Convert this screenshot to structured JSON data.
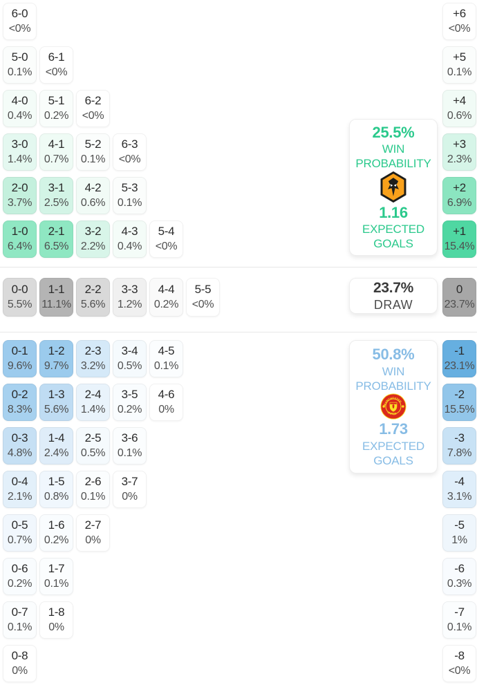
{
  "home_panel": {
    "win_probability": "25.5%",
    "win_label": "WIN PROBABILITY",
    "expected_goals": "1.16",
    "goals_label": "EXPECTED GOALS",
    "accent": "#2bc98c",
    "icon": "wolves-crest"
  },
  "draw_panel": {
    "probability": "23.7%",
    "label": "DRAW"
  },
  "away_panel": {
    "win_probability": "50.8%",
    "win_label": "WIN PROBABILITY",
    "expected_goals": "1.73",
    "goals_label": "EXPECTED GOALS",
    "accent": "#87bce5",
    "icon": "manchester-united-crest"
  },
  "chart_data": {
    "type": "heatmap",
    "description": "Correct score probability matrix with goal-difference totals",
    "legend_position": "none",
    "home_rows": [
      [
        {
          "label": "6-0",
          "pct": "<0%",
          "bg": "#ffffff"
        }
      ],
      [
        {
          "label": "5-0",
          "pct": "0.1%",
          "bg": "#fbfdfc"
        },
        {
          "label": "6-1",
          "pct": "<0%",
          "bg": "#ffffff"
        }
      ],
      [
        {
          "label": "4-0",
          "pct": "0.4%",
          "bg": "#f4fcf8"
        },
        {
          "label": "5-1",
          "pct": "0.2%",
          "bg": "#f9fdfb"
        },
        {
          "label": "6-2",
          "pct": "<0%",
          "bg": "#ffffff"
        }
      ],
      [
        {
          "label": "3-0",
          "pct": "1.4%",
          "bg": "#e4f8f0"
        },
        {
          "label": "4-1",
          "pct": "0.7%",
          "bg": "#effbf5"
        },
        {
          "label": "5-2",
          "pct": "0.1%",
          "bg": "#fbfdfc"
        },
        {
          "label": "6-3",
          "pct": "<0%",
          "bg": "#ffffff"
        }
      ],
      [
        {
          "label": "2-0",
          "pct": "3.7%",
          "bg": "#c4f0dd"
        },
        {
          "label": "3-1",
          "pct": "2.5%",
          "bg": "#d3f4e6"
        },
        {
          "label": "4-2",
          "pct": "0.6%",
          "bg": "#f1fbf6"
        },
        {
          "label": "5-3",
          "pct": "0.1%",
          "bg": "#fbfdfc"
        }
      ],
      [
        {
          "label": "1-0",
          "pct": "6.4%",
          "bg": "#90e7c3"
        },
        {
          "label": "2-1",
          "pct": "6.5%",
          "bg": "#8fe7c2"
        },
        {
          "label": "3-2",
          "pct": "2.2%",
          "bg": "#d8f5e9"
        },
        {
          "label": "4-3",
          "pct": "0.4%",
          "bg": "#f4fcf8"
        },
        {
          "label": "5-4",
          "pct": "<0%",
          "bg": "#ffffff"
        }
      ]
    ],
    "draw_row": [
      {
        "label": "0-0",
        "pct": "5.5%",
        "bg": "#dadada"
      },
      {
        "label": "1-1",
        "pct": "11.1%",
        "bg": "#b4b4b4"
      },
      {
        "label": "2-2",
        "pct": "5.6%",
        "bg": "#d9d9d9"
      },
      {
        "label": "3-3",
        "pct": "1.2%",
        "bg": "#f0f0f0"
      },
      {
        "label": "4-4",
        "pct": "0.2%",
        "bg": "#fafafa"
      },
      {
        "label": "5-5",
        "pct": "<0%",
        "bg": "#ffffff"
      }
    ],
    "away_rows": [
      [
        {
          "label": "0-1",
          "pct": "9.6%",
          "bg": "#9ccbed"
        },
        {
          "label": "1-2",
          "pct": "9.7%",
          "bg": "#9bcbed"
        },
        {
          "label": "2-3",
          "pct": "3.2%",
          "bg": "#d5e9f8"
        },
        {
          "label": "3-4",
          "pct": "0.5%",
          "bg": "#f5fafd"
        },
        {
          "label": "4-5",
          "pct": "0.1%",
          "bg": "#fbfdfe"
        }
      ],
      [
        {
          "label": "0-2",
          "pct": "8.3%",
          "bg": "#a7d1ef"
        },
        {
          "label": "1-3",
          "pct": "5.6%",
          "bg": "#bfdcf3"
        },
        {
          "label": "2-4",
          "pct": "1.4%",
          "bg": "#e9f3fb"
        },
        {
          "label": "3-5",
          "pct": "0.2%",
          "bg": "#f9fcfe"
        },
        {
          "label": "4-6",
          "pct": "0%",
          "bg": "#ffffff"
        }
      ],
      [
        {
          "label": "0-3",
          "pct": "4.8%",
          "bg": "#c6e0f4"
        },
        {
          "label": "1-4",
          "pct": "2.4%",
          "bg": "#dfedf9"
        },
        {
          "label": "2-5",
          "pct": "0.5%",
          "bg": "#f5fafd"
        },
        {
          "label": "3-6",
          "pct": "0.1%",
          "bg": "#fbfdfe"
        }
      ],
      [
        {
          "label": "0-4",
          "pct": "2.1%",
          "bg": "#e3f0fa"
        },
        {
          "label": "1-5",
          "pct": "0.8%",
          "bg": "#f0f7fd"
        },
        {
          "label": "2-6",
          "pct": "0.1%",
          "bg": "#fbfdfe"
        },
        {
          "label": "3-7",
          "pct": "0%",
          "bg": "#ffffff"
        }
      ],
      [
        {
          "label": "0-5",
          "pct": "0.7%",
          "bg": "#f1f7fd"
        },
        {
          "label": "1-6",
          "pct": "0.2%",
          "bg": "#f9fcfe"
        },
        {
          "label": "2-7",
          "pct": "0%",
          "bg": "#ffffff"
        }
      ],
      [
        {
          "label": "0-6",
          "pct": "0.2%",
          "bg": "#f9fcfe"
        },
        {
          "label": "1-7",
          "pct": "0.1%",
          "bg": "#fbfdfe"
        }
      ],
      [
        {
          "label": "0-7",
          "pct": "0.1%",
          "bg": "#fbfdfe"
        },
        {
          "label": "1-8",
          "pct": "0%",
          "bg": "#ffffff"
        }
      ],
      [
        {
          "label": "0-8",
          "pct": "0%",
          "bg": "#ffffff"
        }
      ]
    ],
    "home_goal_diffs": [
      {
        "label": "+6",
        "pct": "<0%",
        "bg": "#ffffff"
      },
      {
        "label": "+5",
        "pct": "0.1%",
        "bg": "#fbfdfc"
      },
      {
        "label": "+4",
        "pct": "0.6%",
        "bg": "#f1fbf6"
      },
      {
        "label": "+3",
        "pct": "2.3%",
        "bg": "#d6f5e8"
      },
      {
        "label": "+2",
        "pct": "6.9%",
        "bg": "#8be5c0"
      },
      {
        "label": "+1",
        "pct": "15.4%",
        "bg": "#4fd7a2"
      }
    ],
    "draw_goal_diff": {
      "label": "0",
      "pct": "23.7%",
      "bg": "#a7a7a7"
    },
    "away_goal_diffs": [
      {
        "label": "-1",
        "pct": "23.1%",
        "bg": "#66afe0"
      },
      {
        "label": "-2",
        "pct": "15.5%",
        "bg": "#92c6ea"
      },
      {
        "label": "-3",
        "pct": "7.8%",
        "bg": "#c8e2f5"
      },
      {
        "label": "-4",
        "pct": "3.1%",
        "bg": "#dfeefa"
      },
      {
        "label": "-5",
        "pct": "1%",
        "bg": "#eff6fc"
      },
      {
        "label": "-6",
        "pct": "0.3%",
        "bg": "#f8fbfe"
      },
      {
        "label": "-7",
        "pct": "0.1%",
        "bg": "#fbfdfe"
      },
      {
        "label": "-8",
        "pct": "<0%",
        "bg": "#ffffff"
      }
    ]
  }
}
